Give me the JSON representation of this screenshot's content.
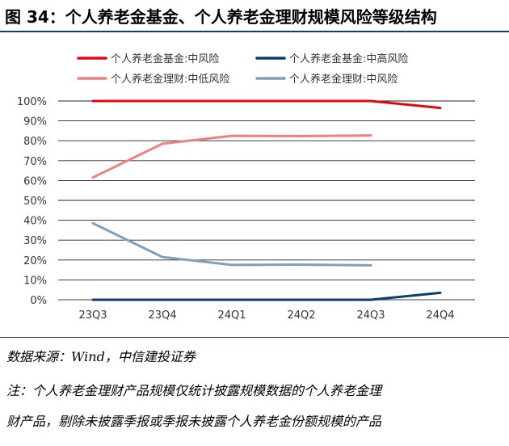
{
  "header": {
    "title": "图 34：个人养老金基金、个人养老金理财规模风险等级结构"
  },
  "footer": {
    "source": "数据来源：Wind，中信建投证券",
    "note_line1": "注：个人养老金理财产品规模仅统计披露规模数据的个人养老金理",
    "note_line2": "财产品，剔除未披露季报或季报未披露个人养老金份额规模的产品"
  },
  "chart_data": {
    "type": "line",
    "categories": [
      "23Q3",
      "23Q4",
      "24Q1",
      "24Q2",
      "24Q3",
      "24Q4"
    ],
    "ylim": [
      0,
      100
    ],
    "yticks": [
      "0%",
      "10%",
      "20%",
      "30%",
      "40%",
      "50%",
      "60%",
      "70%",
      "80%",
      "90%",
      "100%"
    ],
    "grid": true,
    "legend_position": "top",
    "series": [
      {
        "name": "个人养老金基金:中风险",
        "color": "#e30613",
        "values": [
          100,
          100,
          100,
          100,
          100,
          96.5
        ]
      },
      {
        "name": "个人养老金基金:中高风险",
        "color": "#0e3d6b",
        "values": [
          0,
          0,
          0,
          0,
          0,
          3.5
        ]
      },
      {
        "name": "个人养老金理财:中低风险",
        "color": "#f08080",
        "values": [
          61.5,
          78.5,
          82.5,
          82.3,
          82.7,
          null
        ]
      },
      {
        "name": "个人养老金理财:中风险",
        "color": "#7f9fba",
        "values": [
          38.5,
          21.5,
          17.5,
          17.7,
          17.3,
          null
        ]
      }
    ]
  }
}
